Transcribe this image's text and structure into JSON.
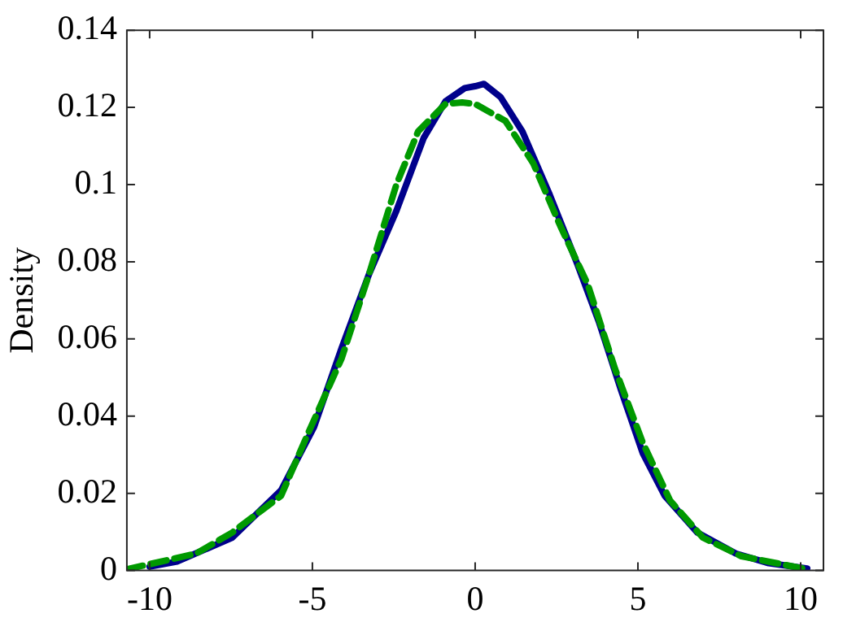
{
  "chart_data": {
    "type": "line",
    "ylabel": "Density",
    "xlim": [
      -10.7,
      10.7
    ],
    "xticks": [
      -10,
      -5,
      0,
      5,
      10
    ],
    "ylim": [
      0,
      0.14
    ],
    "yticks": [
      0,
      0.02,
      0.04,
      0.06,
      0.08,
      0.1,
      0.12,
      0.14
    ],
    "grid": false,
    "legend": false,
    "marker": "none",
    "series": [
      {
        "color": "#00008b",
        "line_style": "solid",
        "x": [
          -10,
          -9.16,
          -7.47,
          -5.96,
          -4.95,
          -4.1,
          -3.26,
          -2.42,
          -1.58,
          -0.91,
          -0.32,
          0,
          0.27,
          0.78,
          1.45,
          2.29,
          3.13,
          3.8,
          4.48,
          5.15,
          5.82,
          6.83,
          8.01,
          9.02,
          10.2
        ],
        "values": [
          0.001,
          0.0023,
          0.0085,
          0.0208,
          0.0372,
          0.0577,
          0.0768,
          0.0932,
          0.1121,
          0.1216,
          0.125,
          0.1255,
          0.1261,
          0.1227,
          0.1138,
          0.0974,
          0.0796,
          0.0645,
          0.0468,
          0.0304,
          0.0194,
          0.0098,
          0.0044,
          0.0019,
          0.0005
        ]
      },
      {
        "color": "#009900",
        "line_style": "dashed",
        "x": [
          -10.7,
          -8.57,
          -7.47,
          -5.96,
          -5.12,
          -4.1,
          -3.26,
          -2.42,
          -1.75,
          -0.91,
          -0.4,
          0,
          0.93,
          1.78,
          2.62,
          3.46,
          4.3,
          5.15,
          5.99,
          7,
          8.18,
          10.2
        ],
        "values": [
          0.0003,
          0.0044,
          0.0098,
          0.0194,
          0.0358,
          0.055,
          0.0768,
          0.1,
          0.1138,
          0.1209,
          0.1213,
          0.1209,
          0.1165,
          0.1056,
          0.0892,
          0.0741,
          0.0522,
          0.0331,
          0.0181,
          0.0085,
          0.0037,
          0.0003
        ]
      }
    ]
  }
}
